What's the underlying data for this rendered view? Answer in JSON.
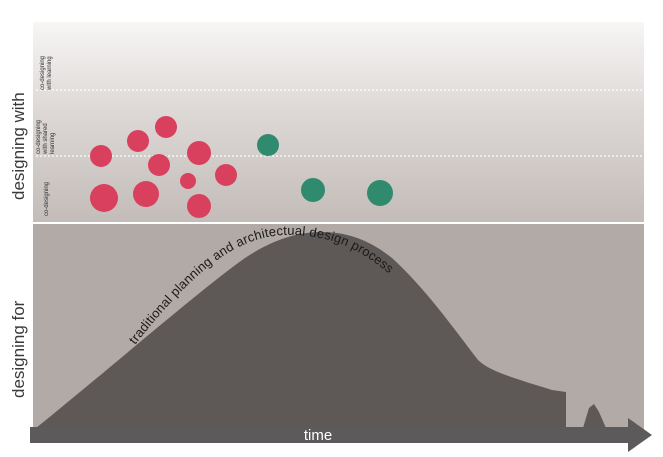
{
  "labels": {
    "designing_with": "designing with",
    "designing_for": "designing for",
    "time": "time",
    "curve": "traditional planning and architectual design process",
    "band_top": [
      "co-designing",
      "with learning"
    ],
    "band_middle": [
      "co-designing",
      "with shared",
      "learning"
    ],
    "band_bottom": [
      "co-designing"
    ]
  },
  "colors": {
    "red_dot": "#d8405e",
    "green_dot": "#2f8a6e",
    "curve_fill": "#5e5856",
    "lower_bg": "#b1aaa7",
    "upper_bg_top": "#f4f2f1",
    "upper_bg_bottom": "#cac4c1",
    "arrow": "#5c5a5a"
  }
}
